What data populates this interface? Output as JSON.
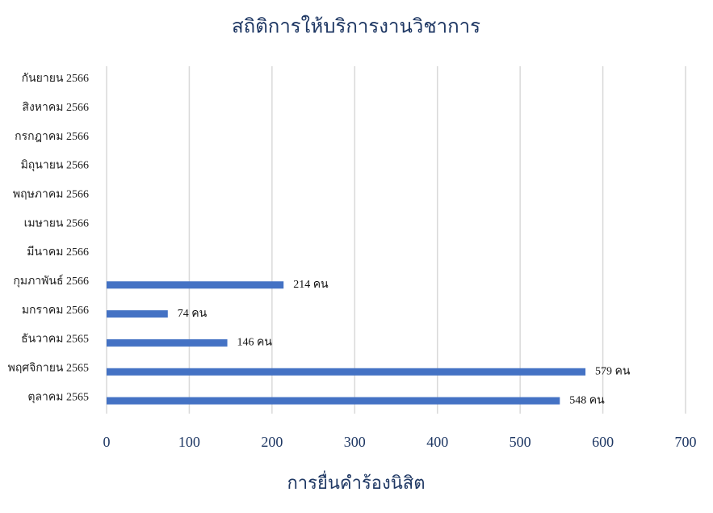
{
  "chart_data": {
    "type": "barh",
    "title": "สถิติการให้บริการงานวิชาการ",
    "x_label": "การยื่นคำร้องนิสิต",
    "categories": [
      "ตุลาคม 2565",
      "พฤศจิกายน 2565",
      "ธันวาคม 2565",
      "มกราคม 2566",
      "กุมภาพันธ์ 2566",
      "มีนาคม 2566",
      "เมษายน 2566",
      "พฤษภาคม 2566",
      "มิถุนายน 2566",
      "กรกฎาคม 2566",
      "สิงหาคม 2566",
      "กันยายน 2566"
    ],
    "values": [
      548,
      579,
      146,
      74,
      214,
      null,
      null,
      null,
      null,
      null,
      null,
      null
    ],
    "value_labels": [
      "548 คน",
      "579 คน",
      "146 คน",
      "74 คน",
      "214 คน",
      null,
      null,
      null,
      null,
      null,
      null,
      null
    ],
    "color": "#4472c4",
    "xlim": [
      0,
      700
    ],
    "xticks": [
      0,
      100,
      200,
      300,
      400,
      500,
      600,
      700
    ],
    "grid": true
  }
}
